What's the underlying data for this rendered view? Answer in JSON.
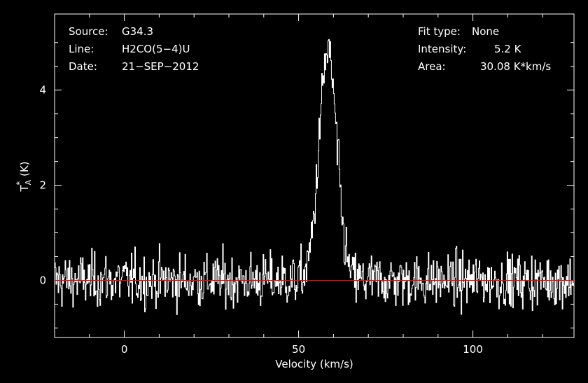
{
  "annotations": {
    "source_label": "Source:",
    "source_value": "G34.3",
    "line_label": "Line:",
    "line_value": "H2CO(5−4)U",
    "date_label": "Date:",
    "date_value": "21−SEP−2012",
    "fit_type_label": "Fit type:",
    "fit_type_value": "None",
    "intensity_label": "Intensity:",
    "intensity_value": "5.2 K",
    "area_label": "Area:",
    "area_value": "30.08 K*km/s"
  },
  "chart_data": {
    "type": "line",
    "title": "",
    "xlabel": "Velocity (km/s)",
    "ylabel_main": "T",
    "ylabel_sub": "A",
    "ylabel_sup": "*",
    "ylabel_unit": " (K)",
    "xlim": [
      -20,
      129
    ],
    "ylim": [
      -1.2,
      5.6
    ],
    "x_ticks": [
      0,
      50,
      100
    ],
    "x_tick_labels": [
      "0",
      "50",
      "100"
    ],
    "y_ticks": [
      0,
      2,
      4
    ],
    "y_tick_labels": [
      "0",
      "2",
      "4"
    ],
    "baseline": 0,
    "colors": {
      "spectrum": "#ffffff",
      "baseline": "#ff0000",
      "axes": "#ffffff",
      "background": "#000000"
    },
    "series": [
      {
        "profile": {
          "peak_velocity": 58.3,
          "peak_intensity": 5.2,
          "fwhm_km_s": 6.0,
          "noise_rms": 0.28,
          "v_start": -20,
          "v_end": 129,
          "channel_width": 0.2
        }
      }
    ]
  }
}
